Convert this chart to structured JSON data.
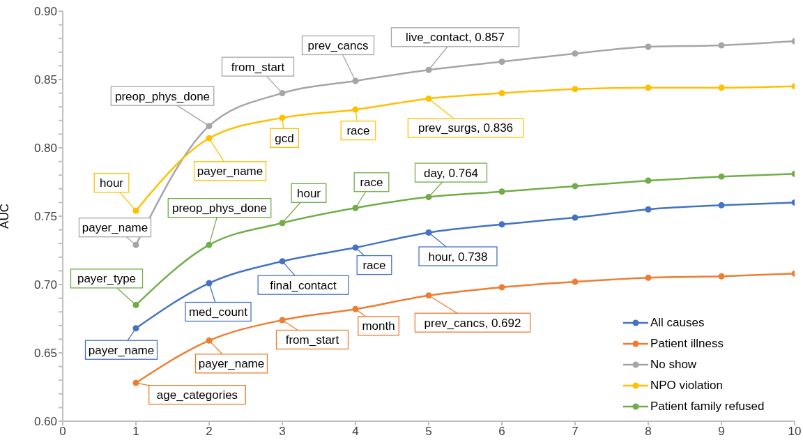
{
  "chart_data": {
    "type": "line",
    "ylabel": "AUC",
    "x": [
      1,
      2,
      3,
      4,
      5,
      6,
      7,
      8,
      9,
      10
    ],
    "xlim": [
      0,
      10
    ],
    "xticks": [
      0,
      1,
      2,
      3,
      4,
      5,
      6,
      7,
      8,
      9,
      10
    ],
    "ylim": [
      0.6,
      0.9
    ],
    "yticks": [
      {
        "value": 0.6,
        "label": "0.60"
      },
      {
        "value": 0.61,
        "label": null
      },
      {
        "value": 0.62,
        "label": null
      },
      {
        "value": 0.63,
        "label": null
      },
      {
        "value": 0.64,
        "label": null
      },
      {
        "value": 0.65,
        "label": "0.65"
      },
      {
        "value": 0.66,
        "label": null
      },
      {
        "value": 0.67,
        "label": null
      },
      {
        "value": 0.68,
        "label": null
      },
      {
        "value": 0.69,
        "label": null
      },
      {
        "value": 0.7,
        "label": "0.70"
      },
      {
        "value": 0.71,
        "label": null
      },
      {
        "value": 0.72,
        "label": null
      },
      {
        "value": 0.73,
        "label": null
      },
      {
        "value": 0.74,
        "label": null
      },
      {
        "value": 0.75,
        "label": "0.75"
      },
      {
        "value": 0.76,
        "label": null
      },
      {
        "value": 0.77,
        "label": null
      },
      {
        "value": 0.78,
        "label": null
      },
      {
        "value": 0.79,
        "label": null
      },
      {
        "value": 0.8,
        "label": "0.80"
      },
      {
        "value": 0.81,
        "label": null
      },
      {
        "value": 0.82,
        "label": null
      },
      {
        "value": 0.83,
        "label": null
      },
      {
        "value": 0.84,
        "label": null
      },
      {
        "value": 0.85,
        "label": "0.85"
      },
      {
        "value": 0.86,
        "label": null
      },
      {
        "value": 0.87,
        "label": null
      },
      {
        "value": 0.88,
        "label": null
      },
      {
        "value": 0.89,
        "label": null
      },
      {
        "value": 0.9,
        "label": "0.90"
      }
    ],
    "grid": false,
    "legend": "bottom right",
    "marker": "circle",
    "series": [
      {
        "name": "All causes",
        "color": "#4472c4",
        "values": [
          0.668,
          0.701,
          0.717,
          0.727,
          0.738,
          0.744,
          0.749,
          0.755,
          0.758,
          0.76
        ]
      },
      {
        "name": "Patient illness",
        "color": "#ed7d31",
        "values": [
          0.628,
          0.659,
          0.674,
          0.682,
          0.692,
          0.698,
          0.702,
          0.705,
          0.706,
          0.708
        ]
      },
      {
        "name": "No show",
        "color": "#a5a5a5",
        "values": [
          0.729,
          0.816,
          0.84,
          0.849,
          0.857,
          0.863,
          0.869,
          0.874,
          0.875,
          0.878
        ]
      },
      {
        "name": "NPO violation",
        "color": "#ffc000",
        "values": [
          0.754,
          0.807,
          0.822,
          0.828,
          0.836,
          0.84,
          0.843,
          0.844,
          0.844,
          0.845
        ]
      },
      {
        "name": "Patient family refused",
        "color": "#70ad47",
        "values": [
          0.685,
          0.729,
          0.745,
          0.756,
          0.764,
          0.768,
          0.772,
          0.776,
          0.779,
          0.781
        ]
      }
    ],
    "annotations": [
      {
        "text": "payer_name",
        "x": 1,
        "y": 0.668
      },
      {
        "text": "med_count",
        "x": 2,
        "y": 0.701
      },
      {
        "text": "final_contact",
        "x": 3,
        "y": 0.717
      },
      {
        "text": "race",
        "x": 4,
        "y": 0.727
      },
      {
        "text": "hour, 0.738",
        "x": 5,
        "y": 0.738
      },
      {
        "text": "age_categories",
        "x": 1,
        "y": 0.628
      },
      {
        "text": "payer_name",
        "x": 2,
        "y": 0.659
      },
      {
        "text": "from_start",
        "x": 3,
        "y": 0.674
      },
      {
        "text": "month",
        "x": 4,
        "y": 0.682
      },
      {
        "text": "prev_cancs, 0.692",
        "x": 5,
        "y": 0.692
      },
      {
        "text": "payer_name",
        "x": 1,
        "y": 0.729
      },
      {
        "text": "preop_phys_done",
        "x": 2,
        "y": 0.816
      },
      {
        "text": "from_start",
        "x": 3,
        "y": 0.84
      },
      {
        "text": "prev_cancs",
        "x": 4,
        "y": 0.849
      },
      {
        "text": "live_contact, 0.857",
        "x": 5,
        "y": 0.857
      },
      {
        "text": "hour",
        "x": 1,
        "y": 0.754
      },
      {
        "text": "payer_name",
        "x": 2,
        "y": 0.807
      },
      {
        "text": "gcd",
        "x": 3,
        "y": 0.822
      },
      {
        "text": "race",
        "x": 4,
        "y": 0.828
      },
      {
        "text": "prev_surgs, 0.836",
        "x": 5,
        "y": 0.836
      },
      {
        "text": "payer_type",
        "x": 1,
        "y": 0.685
      },
      {
        "text": "preop_phys_done",
        "x": 2,
        "y": 0.729
      },
      {
        "text": "hour",
        "x": 3,
        "y": 0.745
      },
      {
        "text": "race",
        "x": 4,
        "y": 0.756
      },
      {
        "text": "day, 0.764",
        "x": 5,
        "y": 0.764
      }
    ]
  }
}
